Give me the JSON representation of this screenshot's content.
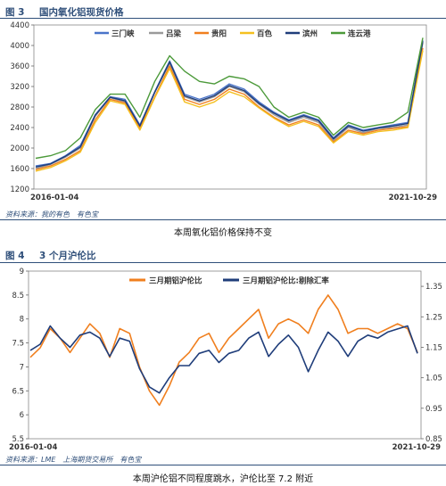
{
  "figure1": {
    "label": "图 3",
    "title": "国内氧化铝现货价格",
    "source": "资料来源：我的有色　有色宝",
    "caption": "本周氧化铝价格保持不变"
  },
  "figure2": {
    "label": "图 4",
    "title": "3 个月沪伦比",
    "source": "资料来源：LME　上海期货交易所　有色宝",
    "caption": "本周沪伦铝不同程度跳水，沪伦比至 7.2 附近"
  },
  "chart_data": [
    {
      "type": "line",
      "title": "国内氧化铝现货价格",
      "x_start": "2016-01-04",
      "x_end": "2021-10-29",
      "xlabels": [
        "2016-01-04",
        "2021-10-29"
      ],
      "ylim": [
        1200,
        4400
      ],
      "yticks": [
        1200,
        1600,
        2000,
        2400,
        2800,
        3200,
        3600,
        4000,
        4400
      ],
      "legend": "top",
      "colors": {
        "三门峡": "#4a74c9",
        "吕梁": "#9a9a9a",
        "贵阳": "#f07f1e",
        "百色": "#f4c020",
        "滨州": "#1f3d7a",
        "连云港": "#4c9a3a"
      },
      "series": [
        {
          "name": "三门峡",
          "values": [
            1650,
            1700,
            1850,
            2050,
            2650,
            3000,
            2950,
            2450,
            3100,
            3700,
            3050,
            2950,
            3050,
            3250,
            3150,
            2900,
            2700,
            2550,
            2650,
            2550,
            2200,
            2450,
            2350,
            2400,
            2450,
            2500,
            4100
          ]
        },
        {
          "name": "吕梁",
          "values": [
            1600,
            1680,
            1820,
            2000,
            2620,
            2980,
            2900,
            2420,
            3080,
            3650,
            3000,
            2900,
            3000,
            3200,
            3100,
            2850,
            2650,
            2500,
            2600,
            2500,
            2150,
            2400,
            2300,
            2380,
            2400,
            2450,
            4050
          ]
        },
        {
          "name": "贵阳",
          "values": [
            1580,
            1650,
            1780,
            1950,
            2550,
            2950,
            2880,
            2380,
            3000,
            3600,
            2950,
            2850,
            2950,
            3150,
            3050,
            2800,
            2600,
            2450,
            2550,
            2450,
            2120,
            2350,
            2280,
            2350,
            2380,
            2420,
            3950
          ]
        },
        {
          "name": "百色",
          "values": [
            1550,
            1620,
            1750,
            1920,
            2500,
            2920,
            2850,
            2350,
            2980,
            3550,
            2900,
            2800,
            2900,
            3100,
            3000,
            2780,
            2580,
            2420,
            2520,
            2420,
            2100,
            2320,
            2250,
            2320,
            2350,
            2400,
            3900
          ]
        },
        {
          "name": "滨州",
          "values": [
            1630,
            1690,
            1840,
            2020,
            2640,
            2990,
            2920,
            2430,
            3090,
            3680,
            3020,
            2920,
            3020,
            3220,
            3120,
            2870,
            2680,
            2530,
            2630,
            2530,
            2180,
            2430,
            2330,
            2390,
            2430,
            2480,
            4080
          ]
        },
        {
          "name": "连云港",
          "values": [
            1800,
            1850,
            1950,
            2200,
            2750,
            3050,
            3050,
            2600,
            3300,
            3800,
            3500,
            3300,
            3250,
            3400,
            3350,
            3200,
            2800,
            2600,
            2700,
            2600,
            2250,
            2500,
            2400,
            2450,
            2500,
            2700,
            4150
          ]
        }
      ]
    },
    {
      "type": "line",
      "title": "3 个月沪伦比",
      "x_start": "2016-01-04",
      "x_end": "2021-10-29",
      "xlabels": [
        "2016-01-04",
        "2021-10-29"
      ],
      "ylim_left": [
        5.5,
        9
      ],
      "yticks_left": [
        5.5,
        6,
        6.5,
        7,
        7.5,
        8,
        8.5,
        9
      ],
      "ylim_right": [
        0.85,
        1.4
      ],
      "yticks_right": [
        0.85,
        0.95,
        1.05,
        1.15,
        1.25,
        1.35
      ],
      "legend": "top",
      "series": [
        {
          "name": "三月期铝沪伦比",
          "axis": "left",
          "color": "#f07f1e",
          "values": [
            7.2,
            7.4,
            7.8,
            7.6,
            7.3,
            7.6,
            7.9,
            7.7,
            7.2,
            7.8,
            7.7,
            7.0,
            6.5,
            6.2,
            6.6,
            7.1,
            7.3,
            7.6,
            7.7,
            7.3,
            7.6,
            7.8,
            8.0,
            8.2,
            7.6,
            7.9,
            8.0,
            7.9,
            7.7,
            8.2,
            8.5,
            8.2,
            7.7,
            7.8,
            7.8,
            7.7,
            7.8,
            7.9,
            7.8,
            7.3
          ]
        },
        {
          "name": "三月期铝沪伦比:剔除汇率",
          "axis": "right",
          "color": "#1f3d7a",
          "values": [
            1.14,
            1.16,
            1.22,
            1.18,
            1.15,
            1.19,
            1.2,
            1.18,
            1.12,
            1.18,
            1.17,
            1.08,
            1.02,
            1.0,
            1.05,
            1.09,
            1.09,
            1.13,
            1.14,
            1.1,
            1.13,
            1.14,
            1.18,
            1.2,
            1.12,
            1.16,
            1.19,
            1.15,
            1.07,
            1.14,
            1.2,
            1.17,
            1.12,
            1.17,
            1.19,
            1.18,
            1.2,
            1.21,
            1.22,
            1.13
          ]
        }
      ]
    }
  ]
}
